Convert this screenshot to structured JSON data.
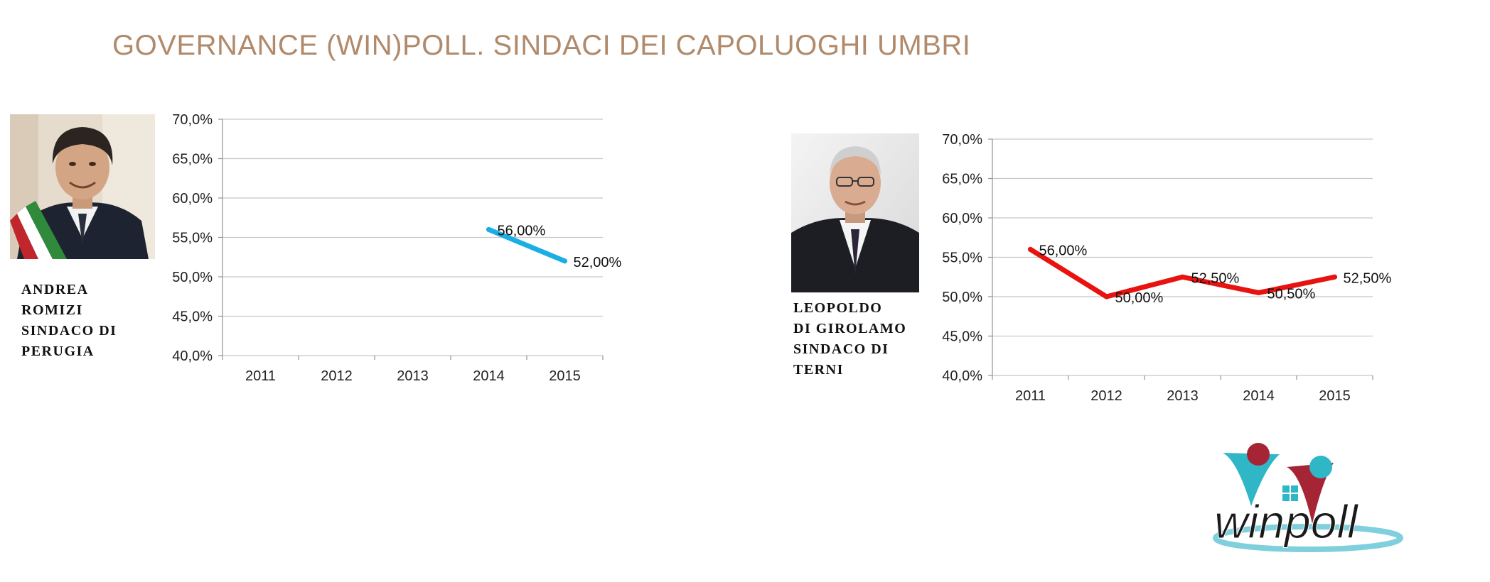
{
  "title": "GOVERNANCE (WIN)POLL. SINDACI DEI CAPOLUOGHI UMBRI",
  "people": [
    {
      "name_lines": [
        "ANDREA",
        "ROMIZI",
        "SINDACO DI",
        "PERUGIA"
      ]
    },
    {
      "name_lines": [
        "LEOPOLDO",
        "DI GIROLAMO",
        "SINDACO DI",
        "TERNI"
      ]
    }
  ],
  "logo": {
    "text": "winpoll"
  },
  "colors": {
    "title": "#b08a6b",
    "perugia_line": "#1aaee5",
    "terni_line": "#e8130f",
    "grid": "#c8c8c8"
  },
  "chart_data": [
    {
      "type": "line",
      "categories": [
        "2011",
        "2012",
        "2013",
        "2014",
        "2015"
      ],
      "y_ticks": [
        "70,0%",
        "65,0%",
        "60,0%",
        "55,0%",
        "50,0%",
        "45,0%",
        "40,0%"
      ],
      "ylim": [
        40,
        70
      ],
      "grid": true,
      "series": [
        {
          "values": [
            null,
            null,
            null,
            56.0,
            52.0
          ],
          "labels": [
            "",
            "",
            "",
            "56,00%",
            "52,00%"
          ],
          "color": "#1aaee5"
        }
      ]
    },
    {
      "type": "line",
      "categories": [
        "2011",
        "2012",
        "2013",
        "2014",
        "2015"
      ],
      "y_ticks": [
        "70,0%",
        "65,0%",
        "60,0%",
        "55,0%",
        "50,0%",
        "45,0%",
        "40,0%"
      ],
      "ylim": [
        40,
        70
      ],
      "grid": true,
      "series": [
        {
          "values": [
            56.0,
            50.0,
            52.5,
            50.5,
            52.5
          ],
          "labels": [
            "56,00%",
            "50,00%",
            "52,50%",
            "50,50%",
            "52,50%"
          ],
          "color": "#e8130f"
        }
      ]
    }
  ]
}
